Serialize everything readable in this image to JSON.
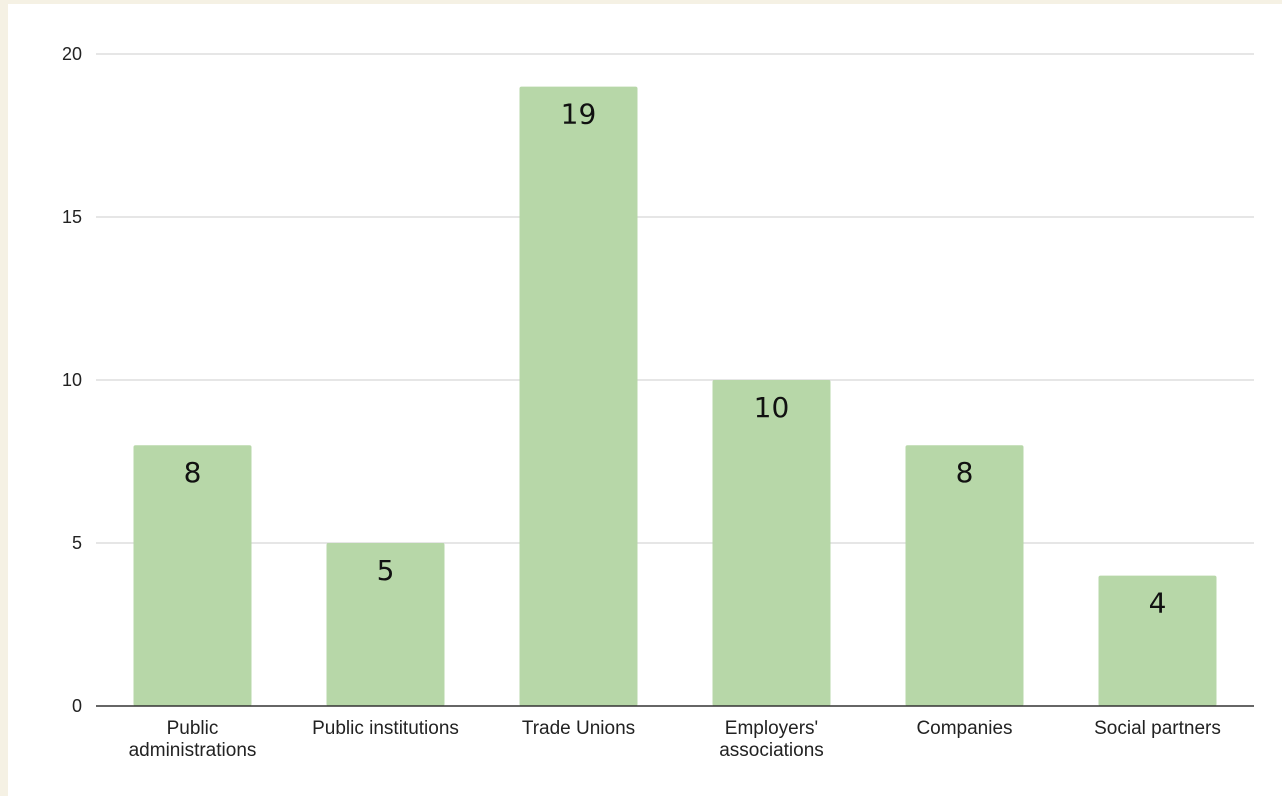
{
  "chart_data": {
    "type": "bar",
    "categories": [
      [
        "Public",
        "administrations"
      ],
      [
        "Public institutions"
      ],
      [
        "Trade Unions"
      ],
      [
        "Employers'",
        "associations"
      ],
      [
        "Companies"
      ],
      [
        "Social partners"
      ]
    ],
    "values": [
      8,
      5,
      19,
      10,
      8,
      4
    ],
    "data_labels": [
      "8",
      "5",
      "19",
      "10",
      "8",
      "4"
    ],
    "y_ticks": [
      0,
      5,
      10,
      15,
      20
    ],
    "ylim": [
      0,
      20
    ],
    "title": "",
    "xlabel": "",
    "ylabel": "",
    "grid": true,
    "legend": "none",
    "colors": {
      "bar": "#b7d7a8",
      "grid": "#cccccc",
      "axis": "#333333",
      "background": "#ffffff",
      "page_background": "#f5f1e4"
    }
  }
}
